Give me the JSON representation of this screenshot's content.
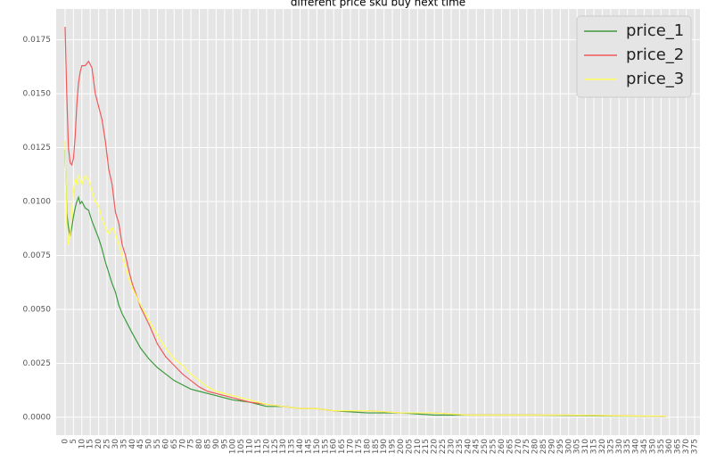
{
  "chart_data": {
    "type": "line",
    "title": "different price sku buy next time",
    "x": [
      0,
      1,
      2,
      3,
      4,
      5,
      6,
      7,
      8,
      9,
      10,
      12,
      14,
      16,
      18,
      20,
      22,
      24,
      26,
      28,
      30,
      32,
      34,
      36,
      38,
      40,
      45,
      50,
      55,
      60,
      65,
      70,
      75,
      80,
      85,
      90,
      100,
      110,
      120,
      130,
      140,
      150,
      160,
      180,
      200,
      220,
      240,
      260,
      280,
      300,
      320,
      340,
      358
    ],
    "series": [
      {
        "name": "price_1",
        "color": "#3c9a3c",
        "values": [
          0.0124,
          0.0095,
          0.0088,
          0.0084,
          0.0088,
          0.0093,
          0.0097,
          0.01,
          0.0102,
          0.0099,
          0.01,
          0.0097,
          0.0096,
          0.0091,
          0.0087,
          0.0083,
          0.0078,
          0.0072,
          0.0067,
          0.0062,
          0.0058,
          0.0052,
          0.0048,
          0.0045,
          0.0042,
          0.0039,
          0.0032,
          0.0027,
          0.0023,
          0.002,
          0.0017,
          0.0015,
          0.0013,
          0.0012,
          0.0011,
          0.001,
          0.0008,
          0.0007,
          0.0005,
          0.0005,
          0.0004,
          0.0004,
          0.0003,
          0.0002,
          0.0002,
          0.0001,
          0.0001,
          0.0001,
          0.0001,
          8e-05,
          6e-05,
          5e-05,
          4e-05
        ]
      },
      {
        "name": "price_2",
        "color": "#f05a5a",
        "values": [
          0.0181,
          0.015,
          0.0125,
          0.0118,
          0.0117,
          0.012,
          0.013,
          0.0145,
          0.0155,
          0.016,
          0.0163,
          0.0163,
          0.0165,
          0.0162,
          0.015,
          0.0144,
          0.0138,
          0.0128,
          0.0115,
          0.0108,
          0.0095,
          0.009,
          0.008,
          0.0075,
          0.0068,
          0.0062,
          0.0051,
          0.0043,
          0.0034,
          0.0028,
          0.0024,
          0.002,
          0.0017,
          0.0014,
          0.0012,
          0.0011,
          0.0009,
          0.0007,
          0.0006,
          0.0005,
          0.0004,
          0.0004,
          0.0003,
          0.0003,
          0.0002,
          0.0002,
          0.0001,
          0.0001,
          0.0001,
          0.0001,
          8e-05,
          6e-05,
          5e-05
        ]
      },
      {
        "name": "price_3",
        "color": "#ffff5a",
        "values": [
          0.0128,
          0.009,
          0.008,
          0.0085,
          0.0095,
          0.0105,
          0.011,
          0.0108,
          0.0112,
          0.011,
          0.0108,
          0.0112,
          0.011,
          0.0105,
          0.01,
          0.0098,
          0.0092,
          0.0088,
          0.0085,
          0.0088,
          0.0085,
          0.008,
          0.0075,
          0.007,
          0.0064,
          0.006,
          0.0052,
          0.0045,
          0.0038,
          0.0032,
          0.0027,
          0.0024,
          0.002,
          0.0017,
          0.0014,
          0.0012,
          0.001,
          0.0008,
          0.0006,
          0.0005,
          0.0004,
          0.0004,
          0.0003,
          0.0003,
          0.0002,
          0.0002,
          0.0001,
          0.0001,
          0.0001,
          0.0001,
          8e-05,
          6e-05,
          5e-05
        ]
      }
    ],
    "xlim": [
      -5.3,
      378.2
    ],
    "xticks": [
      0,
      5,
      10,
      15,
      20,
      25,
      30,
      35,
      40,
      45,
      50,
      55,
      60,
      65,
      70,
      75,
      80,
      85,
      90,
      95,
      100,
      105,
      110,
      115,
      120,
      125,
      130,
      135,
      140,
      145,
      150,
      155,
      160,
      165,
      170,
      175,
      180,
      185,
      190,
      195,
      200,
      205,
      210,
      215,
      220,
      225,
      230,
      235,
      240,
      245,
      250,
      255,
      260,
      265,
      270,
      275,
      280,
      285,
      290,
      295,
      300,
      305,
      310,
      315,
      320,
      325,
      330,
      335,
      340,
      345,
      350,
      355,
      360,
      365,
      370,
      375
    ],
    "ylim": [
      -0.00083,
      0.01893
    ],
    "yticks": [
      {
        "value": 0,
        "label": "0.0000"
      },
      0.0025,
      {
        "value": 0.005,
        "label": "0.0050"
      },
      0.0075,
      {
        "value": 0.01,
        "label": "0.0100"
      },
      0.0125,
      {
        "value": 0.015,
        "label": "0.0150"
      },
      0.0175
    ],
    "grid": true,
    "legend": "upper right"
  }
}
